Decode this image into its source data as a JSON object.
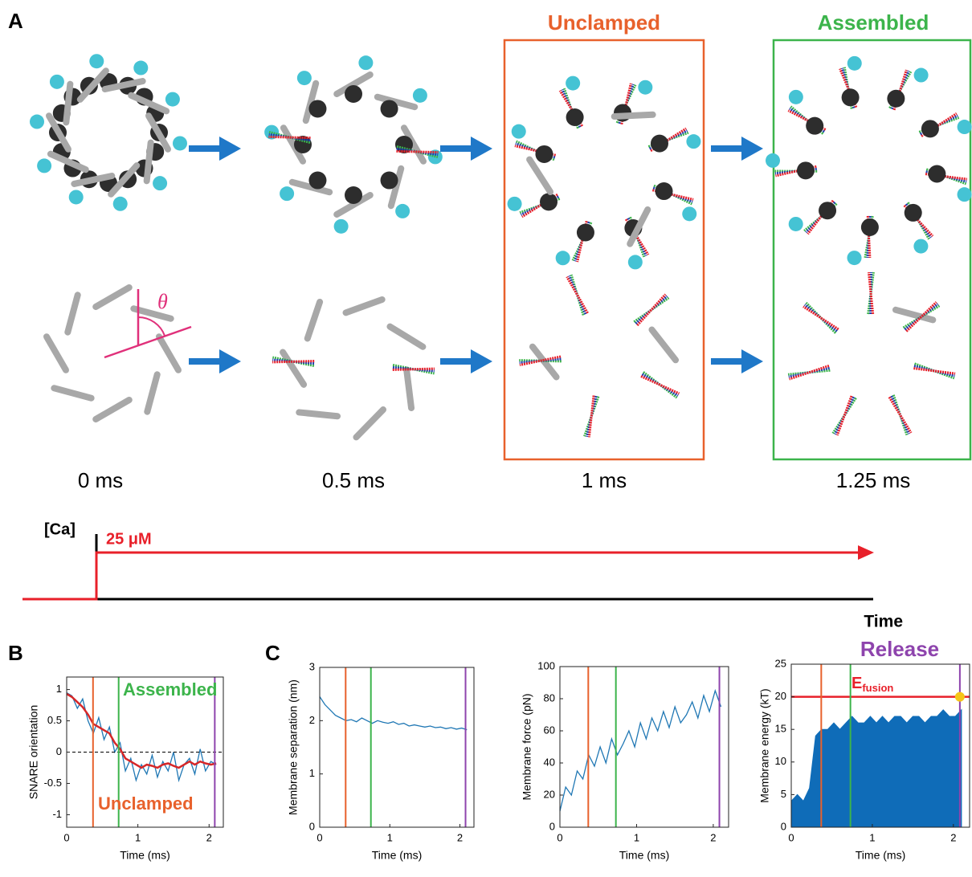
{
  "panel_a": {
    "label": "A",
    "headers": [
      "Unclamped",
      "Assembled"
    ],
    "theta": "θ",
    "times": [
      "0 ms",
      "0.5 ms",
      "1 ms",
      "1.25 ms"
    ],
    "calcium": {
      "label": "[Ca]",
      "conc": "25 μM",
      "axis": "Time"
    }
  },
  "panel_labels": [
    "B",
    "C"
  ],
  "release": "Release",
  "annotations_b": [
    "Assembled",
    "Unclamped"
  ],
  "efusion": {
    "main": "E",
    "sub": "fusion"
  },
  "chart_data": [
    {
      "type": "line",
      "ylabel": "SNARE orientation",
      "xlabel": "Time (ms)",
      "xlim": [
        0,
        2.2
      ],
      "xticks": [
        0,
        1,
        2
      ],
      "ylim": [
        -1.2,
        1.2
      ],
      "yticks": [
        -1,
        -0.5,
        0,
        0.5,
        1
      ],
      "x": [
        0,
        0.075,
        0.15,
        0.225,
        0.3,
        0.375,
        0.45,
        0.525,
        0.6,
        0.675,
        0.75,
        0.825,
        0.9,
        0.975,
        1.05,
        1.125,
        1.2,
        1.275,
        1.35,
        1.425,
        1.5,
        1.575,
        1.65,
        1.725,
        1.8,
        1.875,
        1.95,
        2.025,
        2.1
      ],
      "series": [
        {
          "color": "#1f77b4",
          "values": [
            0.95,
            0.9,
            0.7,
            0.85,
            0.5,
            0.3,
            0.55,
            0.2,
            0.4,
            0.0,
            0.15,
            -0.3,
            -0.1,
            -0.45,
            -0.2,
            -0.35,
            -0.05,
            -0.4,
            -0.15,
            -0.3,
            0.0,
            -0.45,
            -0.2,
            -0.1,
            -0.35,
            0.05,
            -0.3,
            -0.15,
            -0.2
          ]
        },
        {
          "color": "#d62728",
          "values": [
            0.93,
            0.88,
            0.8,
            0.72,
            0.6,
            0.45,
            0.4,
            0.35,
            0.3,
            0.15,
            0.05,
            -0.1,
            -0.15,
            -0.2,
            -0.25,
            -0.2,
            -0.22,
            -0.25,
            -0.2,
            -0.18,
            -0.22,
            -0.25,
            -0.2,
            -0.15,
            -0.2,
            -0.15,
            -0.18,
            -0.2,
            -0.18
          ]
        }
      ],
      "vlines": [
        {
          "x": 0.37,
          "color": "#e8612c"
        },
        {
          "x": 0.73,
          "color": "#3cb44b"
        },
        {
          "x": 2.08,
          "color": "#8e44ad"
        }
      ],
      "hlines": [
        {
          "y": 0,
          "color": "#000000",
          "dashed": true
        }
      ]
    },
    {
      "type": "line",
      "ylabel": "Membrane separation (nm)",
      "xlabel": "Time (ms)",
      "xlim": [
        0,
        2.2
      ],
      "xticks": [
        0,
        1,
        2
      ],
      "ylim": [
        0,
        3
      ],
      "yticks": [
        0,
        1,
        2,
        3
      ],
      "x": [
        0,
        0.075,
        0.15,
        0.225,
        0.3,
        0.375,
        0.45,
        0.525,
        0.6,
        0.675,
        0.75,
        0.825,
        0.9,
        0.975,
        1.05,
        1.125,
        1.2,
        1.275,
        1.35,
        1.425,
        1.5,
        1.575,
        1.65,
        1.725,
        1.8,
        1.875,
        1.95,
        2.025,
        2.1
      ],
      "series": [
        {
          "color": "#1f77b4",
          "values": [
            2.45,
            2.3,
            2.2,
            2.1,
            2.05,
            2.0,
            2.02,
            1.98,
            2.05,
            2.0,
            1.95,
            2.0,
            1.97,
            1.95,
            1.98,
            1.93,
            1.95,
            1.9,
            1.92,
            1.9,
            1.88,
            1.9,
            1.87,
            1.88,
            1.85,
            1.87,
            1.84,
            1.86,
            1.83
          ]
        }
      ],
      "vlines": [
        {
          "x": 0.37,
          "color": "#e8612c"
        },
        {
          "x": 0.73,
          "color": "#3cb44b"
        },
        {
          "x": 2.08,
          "color": "#8e44ad"
        }
      ]
    },
    {
      "type": "line",
      "ylabel": "Membrane force (pN)",
      "xlabel": "Time (ms)",
      "xlim": [
        0,
        2.2
      ],
      "xticks": [
        0,
        1,
        2
      ],
      "ylim": [
        0,
        100
      ],
      "yticks": [
        0,
        20,
        40,
        60,
        80,
        100
      ],
      "x": [
        0,
        0.075,
        0.15,
        0.225,
        0.3,
        0.375,
        0.45,
        0.525,
        0.6,
        0.675,
        0.75,
        0.825,
        0.9,
        0.975,
        1.05,
        1.125,
        1.2,
        1.275,
        1.35,
        1.425,
        1.5,
        1.575,
        1.65,
        1.725,
        1.8,
        1.875,
        1.95,
        2.025,
        2.1
      ],
      "series": [
        {
          "color": "#1f77b4",
          "values": [
            10,
            25,
            20,
            35,
            30,
            45,
            38,
            50,
            40,
            55,
            45,
            52,
            60,
            50,
            65,
            55,
            68,
            60,
            72,
            62,
            75,
            65,
            70,
            78,
            68,
            82,
            72,
            85,
            75
          ]
        }
      ],
      "vlines": [
        {
          "x": 0.37,
          "color": "#e8612c"
        },
        {
          "x": 0.73,
          "color": "#3cb44b"
        },
        {
          "x": 2.08,
          "color": "#8e44ad"
        }
      ]
    },
    {
      "type": "area",
      "ylabel": "Membrane energy (kT)",
      "xlabel": "Time (ms)",
      "xlim": [
        0,
        2.2
      ],
      "xticks": [
        0,
        1,
        2
      ],
      "ylim": [
        0,
        25
      ],
      "yticks": [
        0,
        5,
        10,
        15,
        20,
        25
      ],
      "x": [
        0,
        0.075,
        0.15,
        0.225,
        0.3,
        0.375,
        0.45,
        0.525,
        0.6,
        0.675,
        0.75,
        0.825,
        0.9,
        0.975,
        1.05,
        1.125,
        1.2,
        1.275,
        1.35,
        1.425,
        1.5,
        1.575,
        1.65,
        1.725,
        1.8,
        1.875,
        1.95,
        2.025,
        2.1
      ],
      "series": [
        {
          "color": "#0f6cb8",
          "values": [
            4,
            5,
            4,
            6,
            14,
            15,
            15,
            16,
            15,
            16,
            17,
            16,
            16,
            17,
            16,
            17,
            16,
            17,
            17,
            16,
            17,
            17,
            16,
            17,
            17,
            18,
            17,
            17,
            18
          ]
        }
      ],
      "vlines": [
        {
          "x": 0.37,
          "color": "#e8612c"
        },
        {
          "x": 0.73,
          "color": "#3cb44b"
        },
        {
          "x": 2.08,
          "color": "#8e44ad"
        }
      ],
      "hlines": [
        {
          "y": 20,
          "color": "#e8202a",
          "dashed": false
        }
      ],
      "points": [
        {
          "x": 2.08,
          "y": 20,
          "color": "#f5c518"
        }
      ]
    }
  ]
}
